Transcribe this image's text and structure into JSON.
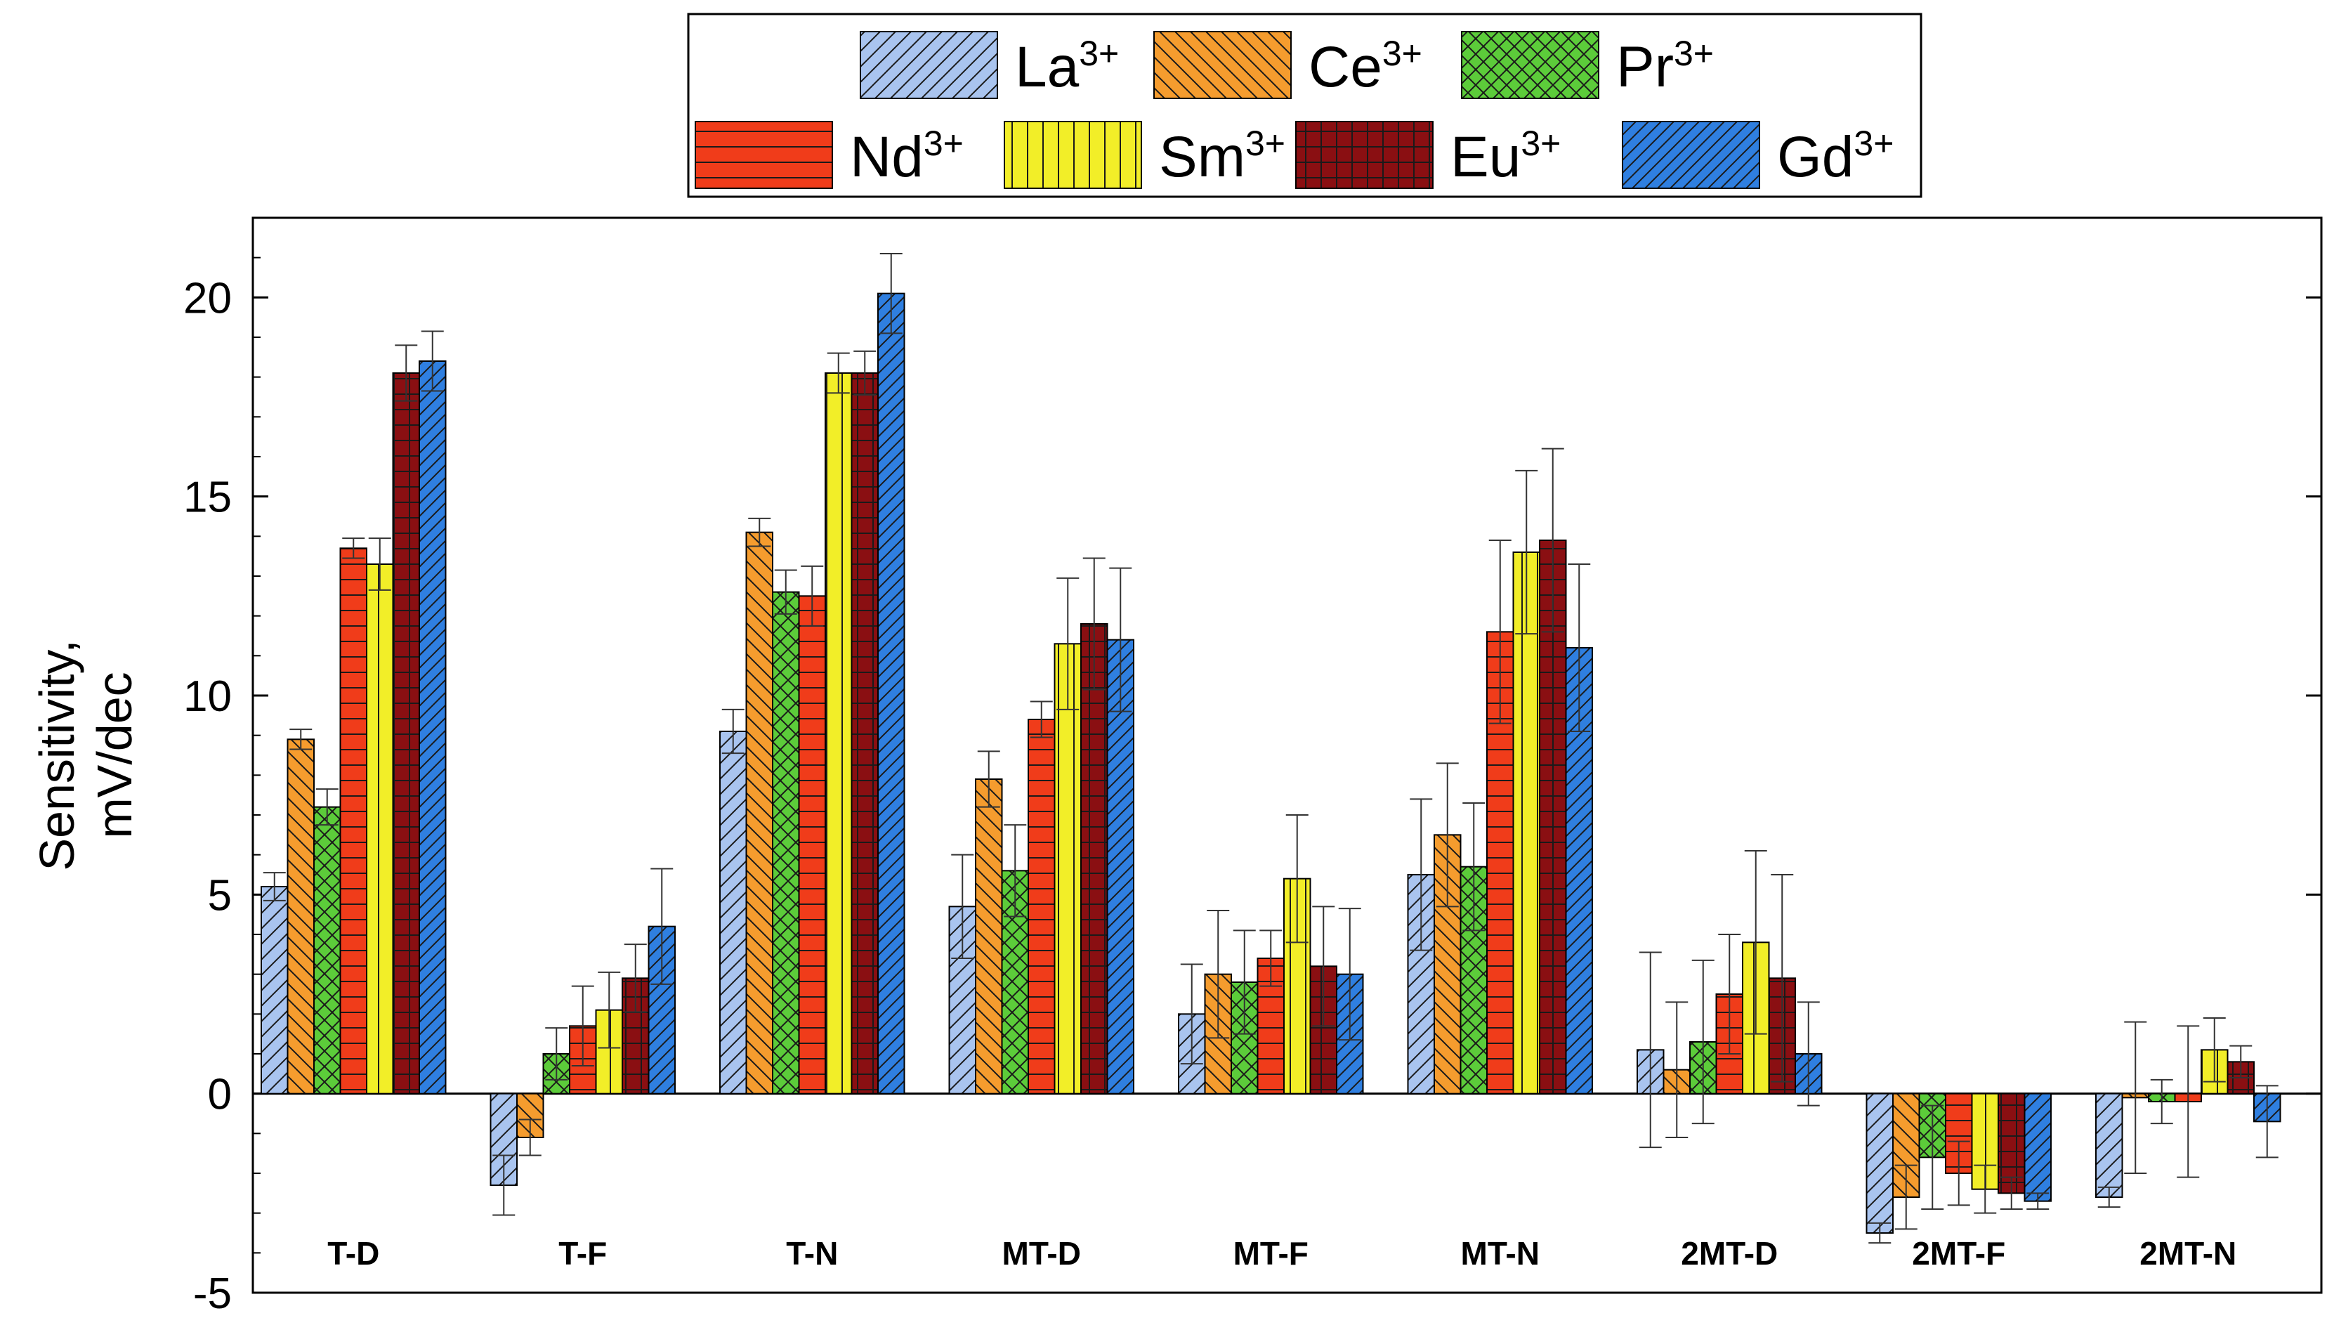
{
  "chart_data": {
    "type": "bar",
    "title": "",
    "xlabel": "",
    "ylabel": "Sensitivity,",
    "ylabel_unit": "mV/dec",
    "ylim": [
      -5,
      22
    ],
    "yticks": [
      -5,
      0,
      5,
      10,
      15,
      20
    ],
    "categories": [
      "T-D",
      "T-F",
      "T-N",
      "MT-D",
      "MT-F",
      "MT-N",
      "2MT-D",
      "2MT-F",
      "2MT-N"
    ],
    "series": [
      {
        "name": "La",
        "superscript": "3+",
        "color": "#a9c4ef",
        "hatch": "diag-fwd",
        "values": [
          5.2,
          -2.3,
          9.1,
          4.7,
          2.0,
          5.5,
          1.1,
          -3.5,
          -2.6
        ],
        "errors": [
          0.35,
          0.75,
          0.55,
          1.3,
          1.25,
          1.9,
          2.45,
          0.25,
          0.25
        ]
      },
      {
        "name": "Ce",
        "superscript": "3+",
        "color": "#f59c2e",
        "hatch": "diag-back",
        "values": [
          8.9,
          -1.1,
          14.1,
          7.9,
          3.0,
          6.5,
          0.6,
          -2.6,
          -0.1
        ],
        "errors": [
          0.25,
          0.45,
          0.35,
          0.7,
          1.6,
          1.8,
          1.7,
          0.8,
          1.9
        ]
      },
      {
        "name": "Pr",
        "superscript": "3+",
        "color": "#5ccc3a",
        "hatch": "crosshatch",
        "values": [
          7.2,
          1.0,
          12.6,
          5.6,
          2.8,
          5.7,
          1.3,
          -1.6,
          -0.2
        ],
        "errors": [
          0.45,
          0.65,
          0.55,
          1.15,
          1.3,
          1.6,
          2.05,
          1.3,
          0.55
        ]
      },
      {
        "name": "Nd",
        "superscript": "3+",
        "color": "#f03c1a",
        "hatch": "horizontal",
        "values": [
          13.7,
          1.7,
          12.5,
          9.4,
          3.4,
          11.6,
          2.5,
          -2.0,
          -0.2
        ],
        "errors": [
          0.25,
          1.0,
          0.75,
          0.45,
          0.7,
          2.3,
          1.5,
          0.8,
          1.9
        ]
      },
      {
        "name": "Sm",
        "superscript": "3+",
        "color": "#f2ee28",
        "hatch": "vertical",
        "values": [
          13.3,
          2.1,
          18.1,
          11.3,
          5.4,
          13.6,
          3.8,
          -2.4,
          1.1
        ],
        "errors": [
          0.65,
          0.95,
          0.5,
          1.65,
          1.6,
          2.05,
          2.3,
          0.6,
          0.8
        ]
      },
      {
        "name": "Eu",
        "superscript": "3+",
        "color": "#8a0f12",
        "hatch": "grid",
        "values": [
          18.1,
          2.9,
          18.1,
          11.8,
          3.2,
          13.9,
          2.9,
          -2.5,
          0.8
        ],
        "errors": [
          0.7,
          0.85,
          0.55,
          1.65,
          1.5,
          2.3,
          2.6,
          0.4,
          0.4
        ]
      },
      {
        "name": "Gd",
        "superscript": "3+",
        "color": "#2f7fe0",
        "hatch": "diag-fwd-dense",
        "values": [
          18.4,
          4.2,
          20.1,
          11.4,
          3.0,
          11.2,
          1.0,
          -2.7,
          -0.7
        ],
        "errors": [
          0.75,
          1.45,
          1.0,
          1.8,
          1.65,
          2.1,
          1.3,
          0.2,
          0.9
        ]
      }
    ]
  }
}
